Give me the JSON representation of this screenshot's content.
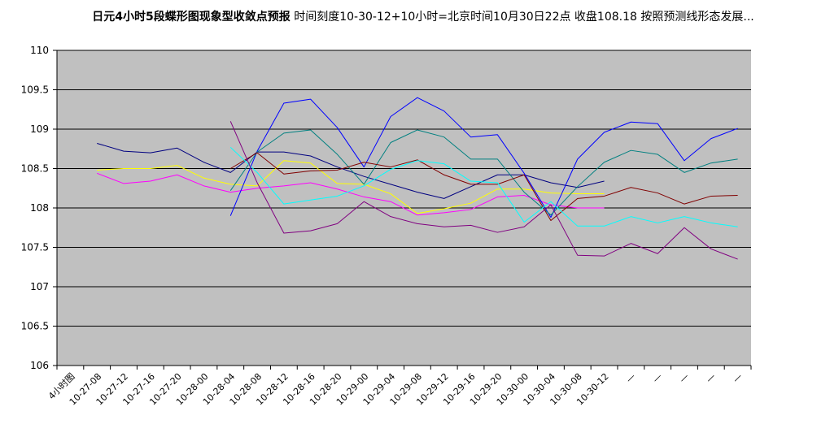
{
  "chart_data": {
    "type": "line",
    "title_bold": "日元4小时5段蝶形图现象型收敛点预报",
    "title_rest": " 时间刻度10-30-12+10小时=北京时间10月30日22点 收盘108.18 按照预测线形态发展...",
    "ylim": [
      106,
      110
    ],
    "yticks": [
      "106",
      "106.5",
      "107",
      "107.5",
      "108",
      "108.5",
      "109",
      "109.5",
      "110"
    ],
    "categories": [
      "4小时图",
      "10-27-08",
      "10-27-12",
      "10-27-16",
      "10-27-20",
      "10-28-00",
      "10-28-04",
      "10-28-08",
      "10-28-12",
      "10-28-16",
      "10-28-20",
      "10-29-00",
      "10-29-04",
      "10-29-08",
      "10-29-12",
      "10-29-16",
      "10-29-20",
      "10-30-00",
      "10-30-04",
      "10-30-08",
      "10-30-12",
      "—",
      "—",
      "—",
      "—",
      "—"
    ],
    "grid": true,
    "legend": "none",
    "colors": {
      "plot_bg": "#c0c0c0",
      "grid": "#000000",
      "navy": "#000080",
      "yellow": "#ffff00",
      "magenta": "#ff00ff",
      "blue": "#0000ff",
      "teal": "#008080",
      "maroon": "#800000",
      "cyan": "#00ffff",
      "purple": "#800080"
    },
    "series": [
      {
        "color": "#000080",
        "values": [
          null,
          108.82,
          108.72,
          108.7,
          108.76,
          108.58,
          108.45,
          108.71,
          108.71,
          108.66,
          108.52,
          108.4,
          108.3,
          108.2,
          108.12,
          108.27,
          108.42,
          108.42,
          108.32,
          108.26,
          108.34,
          null,
          null,
          null,
          null,
          null
        ]
      },
      {
        "color": "#ffff00",
        "values": [
          null,
          108.48,
          108.5,
          108.5,
          108.54,
          108.38,
          108.3,
          108.28,
          108.6,
          108.57,
          108.31,
          108.3,
          108.18,
          107.93,
          107.99,
          108.06,
          108.24,
          108.24,
          108.19,
          108.18,
          108.18,
          null,
          null,
          null,
          null,
          null
        ]
      },
      {
        "color": "#ff00ff",
        "values": [
          null,
          108.44,
          108.31,
          108.34,
          108.42,
          108.28,
          108.2,
          108.25,
          108.28,
          108.32,
          108.24,
          108.14,
          108.08,
          107.91,
          107.94,
          107.98,
          108.14,
          108.16,
          108.04,
          108.0,
          108.0,
          null,
          null,
          null,
          null,
          null
        ]
      },
      {
        "color": "#0000ff",
        "values": [
          null,
          null,
          null,
          null,
          null,
          null,
          107.9,
          108.72,
          109.33,
          109.38,
          109.02,
          108.52,
          109.16,
          109.4,
          109.23,
          108.9,
          108.93,
          108.44,
          107.88,
          108.62,
          108.96,
          109.09,
          109.07,
          108.6,
          108.88,
          109.01
        ]
      },
      {
        "color": "#008080",
        "values": [
          null,
          null,
          null,
          null,
          null,
          null,
          108.22,
          108.71,
          108.95,
          108.99,
          108.68,
          108.3,
          108.83,
          108.99,
          108.9,
          108.62,
          108.62,
          108.2,
          107.91,
          108.27,
          108.58,
          108.73,
          108.68,
          108.45,
          108.57,
          108.62
        ]
      },
      {
        "color": "#800000",
        "values": [
          null,
          null,
          null,
          null,
          null,
          null,
          108.5,
          108.7,
          108.43,
          108.47,
          108.48,
          108.58,
          108.52,
          108.61,
          108.42,
          108.3,
          108.3,
          108.42,
          107.84,
          108.12,
          108.15,
          108.26,
          108.19,
          108.05,
          108.15,
          108.16
        ]
      },
      {
        "color": "#00ffff",
        "values": [
          null,
          null,
          null,
          null,
          null,
          null,
          108.77,
          108.45,
          108.05,
          108.1,
          108.15,
          108.28,
          108.49,
          108.6,
          108.56,
          108.34,
          108.32,
          107.82,
          108.08,
          107.77,
          107.77,
          107.89,
          107.81,
          107.89,
          107.81,
          107.76
        ]
      },
      {
        "color": "#800080",
        "values": [
          null,
          null,
          null,
          null,
          null,
          null,
          109.1,
          108.32,
          107.68,
          107.71,
          107.8,
          108.08,
          107.89,
          107.8,
          107.76,
          107.78,
          107.69,
          107.76,
          108.04,
          107.4,
          107.39,
          107.55,
          107.42,
          107.75,
          107.48,
          107.35
        ]
      }
    ]
  }
}
